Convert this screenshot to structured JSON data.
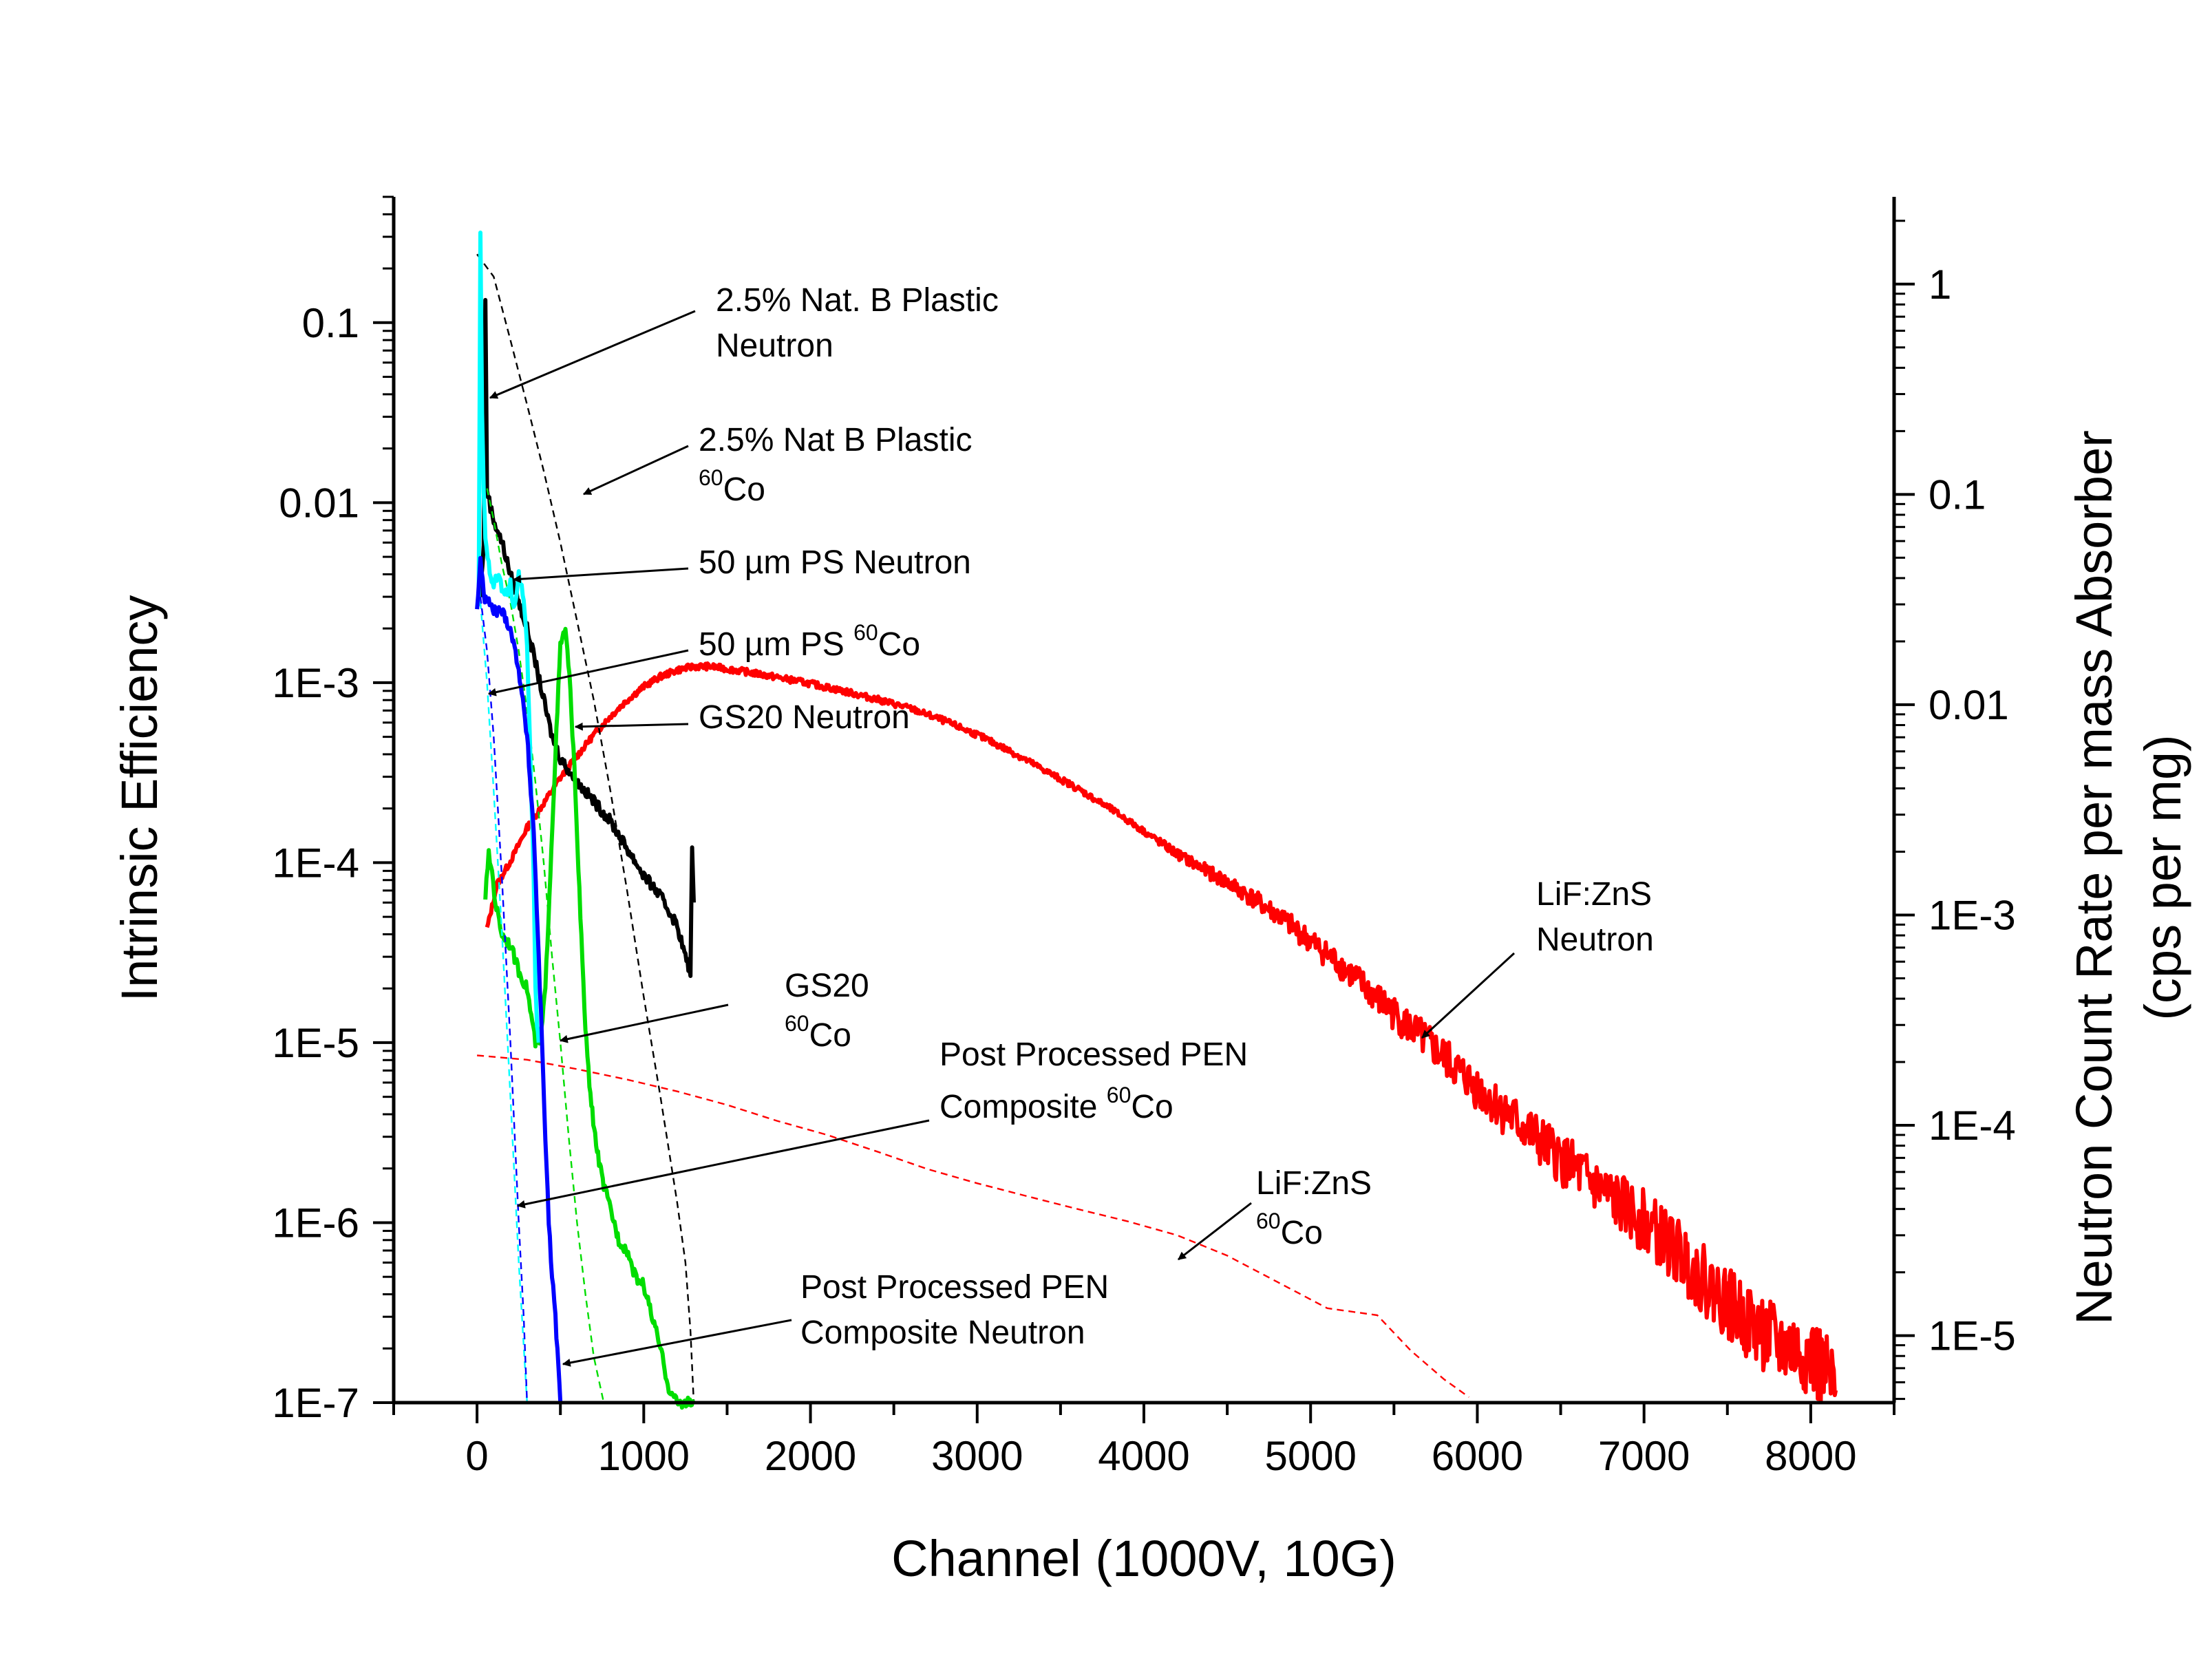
{
  "chart_data": {
    "type": "line",
    "x_axis": {
      "label": "Channel (1000V, 10G)",
      "range": [
        -500,
        8500
      ],
      "ticks": [
        0,
        1000,
        2000,
        3000,
        4000,
        5000,
        6000,
        7000,
        8000
      ]
    },
    "y_axis_left": {
      "label": "Intrinsic Efficiency",
      "scale": "log",
      "range": [
        1e-07,
        0.5
      ],
      "tick_values": [
        1e-07,
        1e-06,
        1e-05,
        0.0001,
        0.001,
        0.01,
        0.1
      ],
      "tick_labels": [
        "1E-7",
        "1E-6",
        "1E-5",
        "1E-4",
        "1E-3",
        "0.01",
        "0.1"
      ]
    },
    "y_axis_right": {
      "label_line1": "Neutron Count Rate per mass Absorber",
      "label_line2": "(cps per mg)",
      "scale": "log",
      "range": [
        4.8e-06,
        2.6
      ],
      "tick_values": [
        1e-05,
        0.0001,
        0.001,
        0.01,
        0.1,
        1
      ],
      "tick_labels": [
        "1E-5",
        "1E-4",
        "1E-3",
        "0.01",
        "0.1",
        "1"
      ]
    },
    "grid": false,
    "legend": "none",
    "series": [
      {
        "color": "#ff0000",
        "style": "solid",
        "axis": "right",
        "noisy": true,
        "points": [
          [
            60,
            0.00086
          ],
          [
            120,
            0.0014
          ],
          [
            200,
            0.0018
          ],
          [
            300,
            0.0026
          ],
          [
            400,
            0.0034
          ],
          [
            500,
            0.0045
          ],
          [
            600,
            0.0057
          ],
          [
            700,
            0.0072
          ],
          [
            800,
            0.0088
          ],
          [
            900,
            0.0105
          ],
          [
            1000,
            0.0122
          ],
          [
            1100,
            0.0136
          ],
          [
            1200,
            0.0146
          ],
          [
            1300,
            0.0152
          ],
          [
            1400,
            0.0152
          ],
          [
            1500,
            0.0148
          ],
          [
            1600,
            0.0144
          ],
          [
            1800,
            0.0135
          ],
          [
            2000,
            0.0126
          ],
          [
            2200,
            0.0116
          ],
          [
            2400,
            0.0106
          ],
          [
            2600,
            0.0096
          ],
          [
            2800,
            0.0084
          ],
          [
            3000,
            0.0072
          ],
          [
            3200,
            0.006
          ],
          [
            3400,
            0.0049
          ],
          [
            3600,
            0.004
          ],
          [
            3800,
            0.0032
          ],
          [
            4000,
            0.0025
          ],
          [
            4200,
            0.00195
          ],
          [
            4400,
            0.00158
          ],
          [
            4600,
            0.00128
          ],
          [
            4800,
            0.001
          ],
          [
            5000,
            0.00075
          ],
          [
            5200,
            0.00056
          ],
          [
            5400,
            0.0004
          ],
          [
            5600,
            0.00029
          ],
          [
            5800,
            0.00021
          ],
          [
            6000,
            0.00015
          ],
          [
            6200,
            0.00011
          ],
          [
            6400,
            8e-05
          ],
          [
            6600,
            6e-05
          ],
          [
            6800,
            4.5e-05
          ],
          [
            7000,
            3.5e-05
          ],
          [
            7200,
            2.5e-05
          ],
          [
            7400,
            1.7e-05
          ],
          [
            7600,
            1.2e-05
          ],
          [
            7800,
            9e-06
          ],
          [
            8000,
            8e-06
          ],
          [
            8150,
            5.5e-06
          ]
        ]
      },
      {
        "color": "#ff0000",
        "style": "dashed",
        "axis": "right",
        "points": [
          [
            0,
            0.000215
          ],
          [
            300,
            0.000205
          ],
          [
            600,
            0.000185
          ],
          [
            900,
            0.000165
          ],
          [
            1200,
            0.000145
          ],
          [
            1500,
            0.000125
          ],
          [
            1800,
            0.000105
          ],
          [
            2100,
            9e-05
          ],
          [
            2400,
            7.5e-05
          ],
          [
            2700,
            6.2e-05
          ],
          [
            3000,
            5.3e-05
          ],
          [
            3300,
            4.6e-05
          ],
          [
            3600,
            4e-05
          ],
          [
            3900,
            3.5e-05
          ],
          [
            4200,
            3e-05
          ],
          [
            4500,
            2.4e-05
          ],
          [
            4800,
            1.8e-05
          ],
          [
            5100,
            1.35e-05
          ],
          [
            5400,
            1.25e-05
          ],
          [
            5600,
            8.5e-06
          ],
          [
            5800,
            6.2e-06
          ],
          [
            5950,
            5.1e-06
          ]
        ]
      },
      {
        "color": "#000000",
        "style": "solid",
        "axis": "left",
        "noisy": true,
        "points": [
          [
            20,
            0.003
          ],
          [
            40,
            0.006
          ],
          [
            50,
            0.14
          ],
          [
            60,
            0.012
          ],
          [
            80,
            0.0095
          ],
          [
            100,
            0.008
          ],
          [
            150,
            0.006
          ],
          [
            200,
            0.004
          ],
          [
            250,
            0.0028
          ],
          [
            300,
            0.002
          ],
          [
            350,
            0.0013
          ],
          [
            400,
            0.0008
          ],
          [
            450,
            0.0005
          ],
          [
            500,
            0.00038
          ],
          [
            600,
            0.00028
          ],
          [
            700,
            0.00022
          ],
          [
            800,
            0.00017
          ],
          [
            900,
            0.00012
          ],
          [
            1000,
            8.5e-05
          ],
          [
            1100,
            6.5e-05
          ],
          [
            1200,
            4.5e-05
          ],
          [
            1250,
            3e-05
          ],
          [
            1280,
            2.4e-05
          ],
          [
            1290,
            0.00013
          ],
          [
            1300,
            6e-05
          ]
        ]
      },
      {
        "color": "#000000",
        "style": "dashed",
        "axis": "left",
        "points": [
          [
            0,
            0.24
          ],
          [
            100,
            0.18
          ],
          [
            200,
            0.08
          ],
          [
            300,
            0.035
          ],
          [
            400,
            0.015
          ],
          [
            500,
            0.006
          ],
          [
            600,
            0.0022
          ],
          [
            700,
            0.0008
          ],
          [
            800,
            0.00025
          ],
          [
            900,
            7e-05
          ],
          [
            1000,
            1.8e-05
          ],
          [
            1100,
            5e-06
          ],
          [
            1200,
            1.3e-06
          ],
          [
            1250,
            6e-07
          ],
          [
            1280,
            2.5e-07
          ],
          [
            1300,
            1e-07
          ]
        ]
      },
      {
        "color": "#00dd00",
        "style": "solid",
        "axis": "left",
        "noisy": true,
        "points": [
          [
            50,
            6.5e-05
          ],
          [
            70,
            0.00011
          ],
          [
            90,
            9e-05
          ],
          [
            110,
            6e-05
          ],
          [
            150,
            4e-05
          ],
          [
            200,
            3.5e-05
          ],
          [
            250,
            2.5e-05
          ],
          [
            300,
            2e-05
          ],
          [
            350,
            1e-05
          ],
          [
            380,
            1e-05
          ],
          [
            410,
            2e-05
          ],
          [
            440,
            9e-05
          ],
          [
            470,
            0.0004
          ],
          [
            500,
            0.0016
          ],
          [
            530,
            0.002
          ],
          [
            560,
            0.0009
          ],
          [
            590,
            0.00025
          ],
          [
            620,
            5e-05
          ],
          [
            650,
            1.2e-05
          ],
          [
            680,
            5e-06
          ],
          [
            720,
            2.5e-06
          ],
          [
            760,
            1.6e-06
          ],
          [
            800,
            1.2e-06
          ],
          [
            850,
            8e-07
          ],
          [
            900,
            7e-07
          ],
          [
            950,
            5e-07
          ],
          [
            1000,
            4.5e-07
          ],
          [
            1050,
            3e-07
          ],
          [
            1100,
            2e-07
          ],
          [
            1150,
            1.2e-07
          ],
          [
            1200,
            1e-07
          ],
          [
            1300,
            1e-07
          ]
        ]
      },
      {
        "color": "#00dd00",
        "style": "dashed",
        "axis": "left",
        "points": [
          [
            60,
            0.012
          ],
          [
            100,
            0.008
          ],
          [
            150,
            0.0045
          ],
          [
            200,
            0.0028
          ],
          [
            250,
            0.0015
          ],
          [
            300,
            0.0007
          ],
          [
            350,
            0.00028
          ],
          [
            400,
            0.0001
          ],
          [
            450,
            3e-05
          ],
          [
            500,
            1e-05
          ],
          [
            550,
            3e-06
          ],
          [
            600,
            1e-06
          ],
          [
            650,
            4e-07
          ],
          [
            700,
            1.8e-07
          ],
          [
            760,
            1e-07
          ]
        ]
      },
      {
        "color": "#00ffff",
        "style": "solid",
        "axis": "left",
        "noisy": true,
        "points": [
          [
            10,
            0.0025
          ],
          [
            20,
            0.3
          ],
          [
            30,
            0.03
          ],
          [
            40,
            0.012
          ],
          [
            50,
            0.006
          ],
          [
            70,
            0.0045
          ],
          [
            100,
            0.0035
          ],
          [
            130,
            0.004
          ],
          [
            160,
            0.003
          ],
          [
            200,
            0.0035
          ],
          [
            220,
            0.0025
          ],
          [
            250,
            0.004
          ],
          [
            280,
            0.003
          ],
          [
            300,
            0.0015
          ],
          [
            320,
            0.0004
          ],
          [
            340,
            8e-05
          ],
          [
            350,
            2e-05
          ],
          [
            360,
            1.2e-05
          ],
          [
            370,
            1e-05
          ]
        ]
      },
      {
        "color": "#00ffff",
        "style": "dashed",
        "axis": "left",
        "points": [
          [
            20,
            0.0028
          ],
          [
            60,
            0.001
          ],
          [
            100,
            0.00025
          ],
          [
            150,
            4e-05
          ],
          [
            200,
            5e-06
          ],
          [
            250,
            6e-07
          ],
          [
            300,
            1e-07
          ]
        ]
      },
      {
        "color": "#0000ff",
        "style": "solid",
        "axis": "left",
        "noisy": true,
        "points": [
          [
            0,
            0.0025
          ],
          [
            20,
            0.005
          ],
          [
            40,
            0.003
          ],
          [
            70,
            0.0028
          ],
          [
            100,
            0.0025
          ],
          [
            150,
            0.0025
          ],
          [
            200,
            0.002
          ],
          [
            250,
            0.0012
          ],
          [
            300,
            0.0005
          ],
          [
            340,
            0.00015
          ],
          [
            370,
            3e-05
          ],
          [
            390,
            1e-05
          ],
          [
            410,
            3e-06
          ],
          [
            430,
            1e-06
          ],
          [
            450,
            5e-07
          ],
          [
            470,
            3e-07
          ],
          [
            500,
            1e-07
          ]
        ]
      },
      {
        "color": "#0000ff",
        "style": "dashed",
        "axis": "left",
        "points": [
          [
            20,
            0.003
          ],
          [
            60,
            0.0015
          ],
          [
            100,
            0.0005
          ],
          [
            150,
            8e-05
          ],
          [
            200,
            1e-05
          ],
          [
            250,
            1e-06
          ],
          [
            280,
            3e-07
          ],
          [
            300,
            1e-07
          ]
        ]
      }
    ],
    "annotations": [
      {
        "id": "a1",
        "lines": [
          "2.5% Nat. B Plastic",
          "Neutron"
        ]
      },
      {
        "id": "a2",
        "lines": [
          "2.5% Nat B Plastic",
          "Co"
        ],
        "sup": "60"
      },
      {
        "id": "a3",
        "text": "50 µm PS Neutron"
      },
      {
        "id": "a4",
        "text": "50 µm PS ",
        "sup": "60",
        "tail": "Co"
      },
      {
        "id": "a5",
        "text": "GS20 Neutron"
      },
      {
        "id": "a6",
        "lines": [
          "LiF:ZnS",
          "Neutron"
        ]
      },
      {
        "id": "a7",
        "lines": [
          "GS20",
          "Co"
        ],
        "sup": "60"
      },
      {
        "id": "a8",
        "lines": [
          "Post Processed PEN",
          "Composite "
        ],
        "sup": "60",
        "tail": "Co"
      },
      {
        "id": "a9",
        "lines": [
          "LiF:ZnS",
          "Co"
        ],
        "sup": "60"
      },
      {
        "id": "a10",
        "lines": [
          "Post Processed PEN",
          "Composite Neutron"
        ]
      }
    ]
  }
}
